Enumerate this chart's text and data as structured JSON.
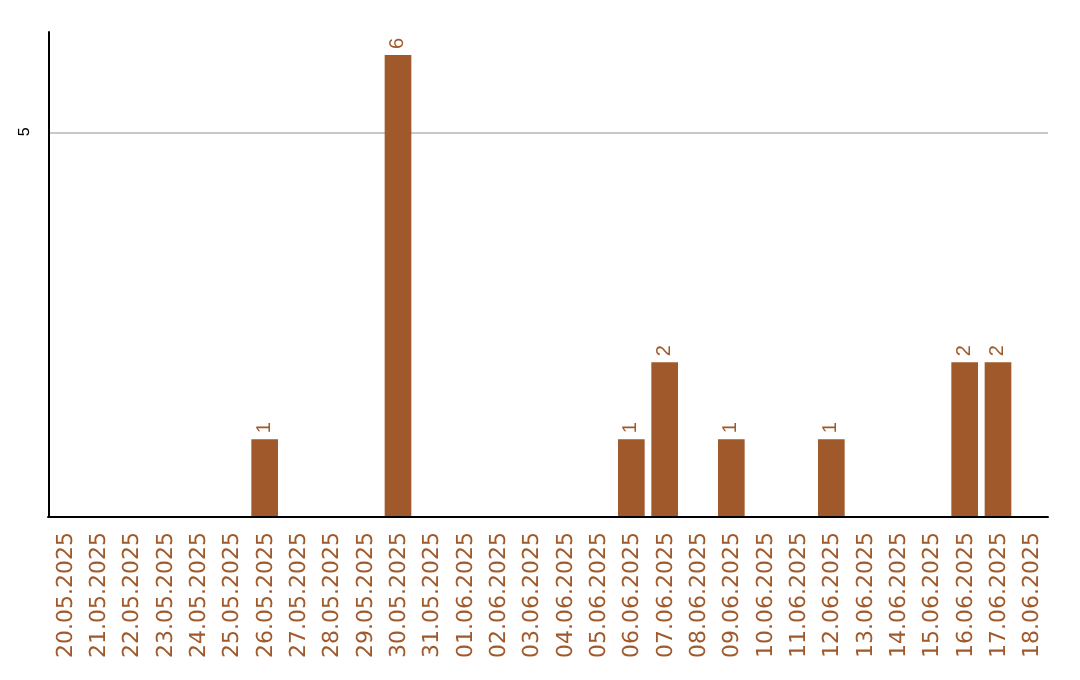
{
  "chart_data": {
    "type": "bar",
    "categories": [
      "20.05.2025",
      "21.05.2025",
      "22.05.2025",
      "23.05.2025",
      "24.05.2025",
      "25.05.2025",
      "26.05.2025",
      "27.05.2025",
      "28.05.2025",
      "29.05.2025",
      "30.05.2025",
      "31.05.2025",
      "01.06.2025",
      "02.06.2025",
      "03.06.2025",
      "04.06.2025",
      "05.06.2025",
      "06.06.2025",
      "07.06.2025",
      "08.06.2025",
      "09.06.2025",
      "10.06.2025",
      "11.06.2025",
      "12.06.2025",
      "13.06.2025",
      "14.06.2025",
      "15.06.2025",
      "16.06.2025",
      "17.06.2025",
      "18.06.2025"
    ],
    "values": [
      0,
      0,
      0,
      0,
      0,
      0,
      1,
      0,
      0,
      0,
      6,
      0,
      0,
      0,
      0,
      0,
      0,
      1,
      2,
      0,
      1,
      0,
      0,
      1,
      0,
      0,
      0,
      2,
      2,
      0
    ],
    "color": "#a0592b",
    "ylim": [
      0,
      6.3
    ],
    "yticks": [
      5
    ],
    "grid": "y",
    "value_labels": [
      null,
      null,
      null,
      null,
      null,
      null,
      "1",
      null,
      null,
      null,
      "6",
      null,
      null,
      null,
      null,
      null,
      null,
      "1",
      "2",
      null,
      "1",
      null,
      null,
      "1",
      null,
      null,
      null,
      "2",
      "2",
      null
    ]
  }
}
